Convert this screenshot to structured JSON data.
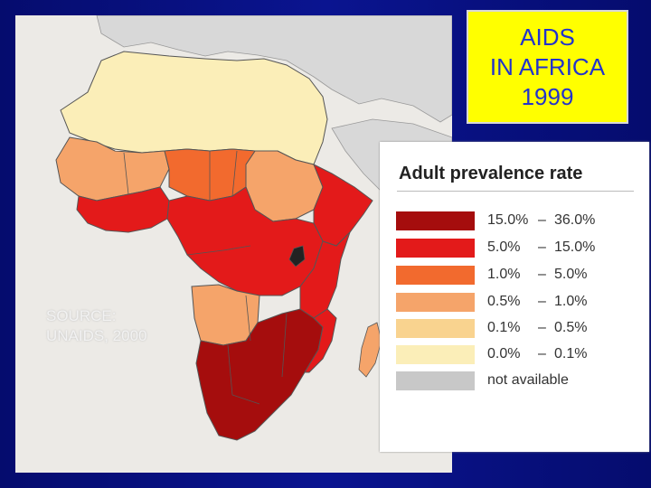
{
  "title": {
    "lines": [
      "AIDS",
      "IN AFRICA",
      "1999"
    ],
    "text_color": "#2233cc",
    "background": "#ffff00"
  },
  "source": {
    "lines": [
      "SOURCE:",
      "UNAIDS, 2000"
    ]
  },
  "legend": {
    "title": "Adult prevalence rate",
    "items": [
      {
        "low": "15.0%",
        "sep": "–",
        "high": "36.0%",
        "color": "#a50d0d"
      },
      {
        "low": "5.0%",
        "sep": "–",
        "high": "15.0%",
        "color": "#e31a1a"
      },
      {
        "low": "1.0%",
        "sep": "–",
        "high": "5.0%",
        "color": "#f26a2e"
      },
      {
        "low": "0.5%",
        "sep": "–",
        "high": "1.0%",
        "color": "#f5a46a"
      },
      {
        "low": "0.1%",
        "sep": "–",
        "high": "0.5%",
        "color": "#f9d38f"
      },
      {
        "low": "0.0%",
        "sep": "–",
        "high": "0.1%",
        "color": "#fbeeb8"
      },
      {
        "label": "not available",
        "color": "#c8c8c8"
      }
    ]
  },
  "map": {
    "ocean_color": "#eceae6",
    "outside_land_color": "#d8d8d8",
    "border_color": "#555555"
  }
}
